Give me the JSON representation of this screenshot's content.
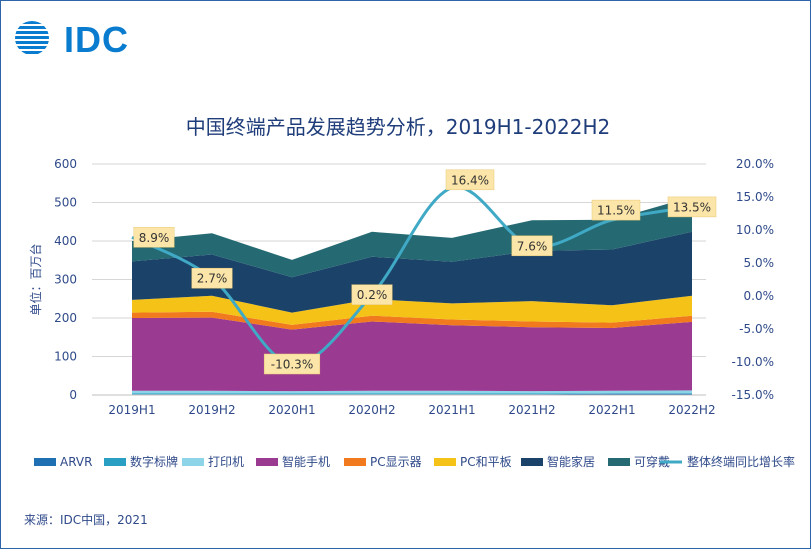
{
  "logo": {
    "text": "IDC",
    "icon": "globe-icon"
  },
  "colors": {
    "ARVR": "#1f6fb3",
    "数字标牌": "#2a9fc4",
    "打印机": "#8dd4e8",
    "智能手机": "#9a3a91",
    "PC显示器": "#f07a1d",
    "PC和平板": "#f5c218",
    "智能家居": "#1b4268",
    "可穿戴": "#256a72",
    "line": "#3fa9c6",
    "label_bg": "#fbe5a8",
    "title": "#1f3d7a"
  },
  "chart_data": {
    "type": "area",
    "title": "中国终端产品发展趋势分析，2019H1-2022H2",
    "ylabel": "单位：百万台",
    "categories": [
      "2019H1",
      "2019H2",
      "2020H1",
      "2020H2",
      "2021H1",
      "2021H2",
      "2022H1",
      "2022H2"
    ],
    "ylim": [
      0,
      600
    ],
    "yticks": [
      "0",
      "100",
      "200",
      "300",
      "400",
      "500",
      "600"
    ],
    "y2lim": [
      -15,
      20
    ],
    "y2ticks": [
      "-15.0%",
      "-10.0%",
      "-5.0%",
      "0.0%",
      "5.0%",
      "10.0%",
      "15.0%",
      "20.0%"
    ],
    "series": [
      {
        "name": "ARVR",
        "values": [
          2,
          2,
          2,
          2,
          2,
          2,
          3,
          3
        ]
      },
      {
        "name": "数字标牌",
        "values": [
          2,
          2,
          2,
          2,
          2,
          2,
          2,
          2
        ]
      },
      {
        "name": "打印机",
        "values": [
          7,
          7,
          6,
          7,
          7,
          6,
          6,
          7
        ]
      },
      {
        "name": "智能手机",
        "values": [
          189,
          190,
          160,
          180,
          170,
          166,
          163,
          178
        ]
      },
      {
        "name": "PC显示器",
        "values": [
          14,
          15,
          12,
          15,
          15,
          15,
          14,
          16
        ]
      },
      {
        "name": "PC和平板",
        "values": [
          33,
          42,
          32,
          43,
          42,
          53,
          45,
          52
        ]
      },
      {
        "name": "智能家居",
        "values": [
          100,
          107,
          92,
          110,
          108,
          130,
          145,
          166
        ]
      },
      {
        "name": "可穿戴",
        "values": [
          53,
          55,
          45,
          65,
          62,
          80,
          77,
          91
        ]
      }
    ],
    "line_series": {
      "name": "整体终端同比增长率",
      "values": [
        8.9,
        2.7,
        -10.3,
        0.2,
        16.4,
        7.6,
        11.5,
        13.5
      ],
      "labels": [
        "8.9%",
        "2.7%",
        "-10.3%",
        "0.2%",
        "16.4%",
        "7.6%",
        "11.5%",
        "13.5%"
      ]
    },
    "legend": [
      "ARVR",
      "数字标牌",
      "打印机",
      "智能手机",
      "PC显示器",
      "PC和平板",
      "智能家居",
      "可穿戴",
      "整体终端同比增长率"
    ],
    "legend_position": "bottom"
  },
  "source": "来源：IDC中国，2021"
}
